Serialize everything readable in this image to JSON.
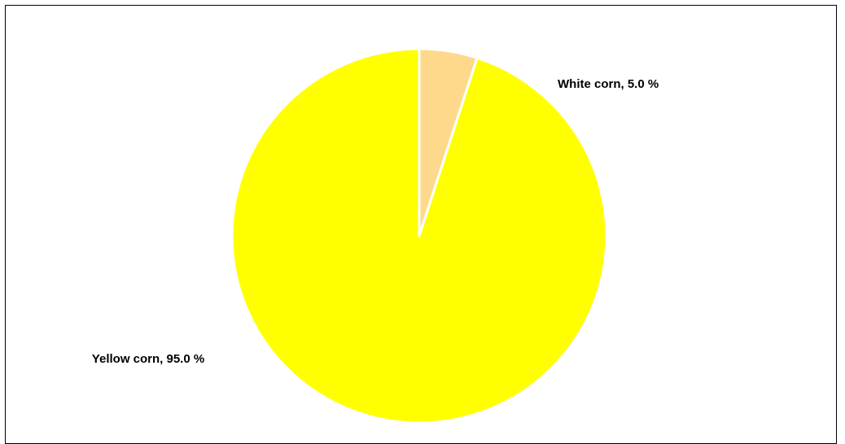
{
  "chart_data": {
    "type": "pie",
    "title": "",
    "start_angle": "12 o'clock",
    "direction": "clockwise",
    "slices": [
      {
        "label": "White corn",
        "value": 5.0,
        "display": "White corn,  5.0 %",
        "color": "#FFD98B"
      },
      {
        "label": "Yellow corn",
        "value": 95.0,
        "display": "Yellow corn,  95.0 %",
        "color": "#FFFF00"
      }
    ],
    "slice_border_color": "#FFFFFF",
    "legend": "none"
  }
}
